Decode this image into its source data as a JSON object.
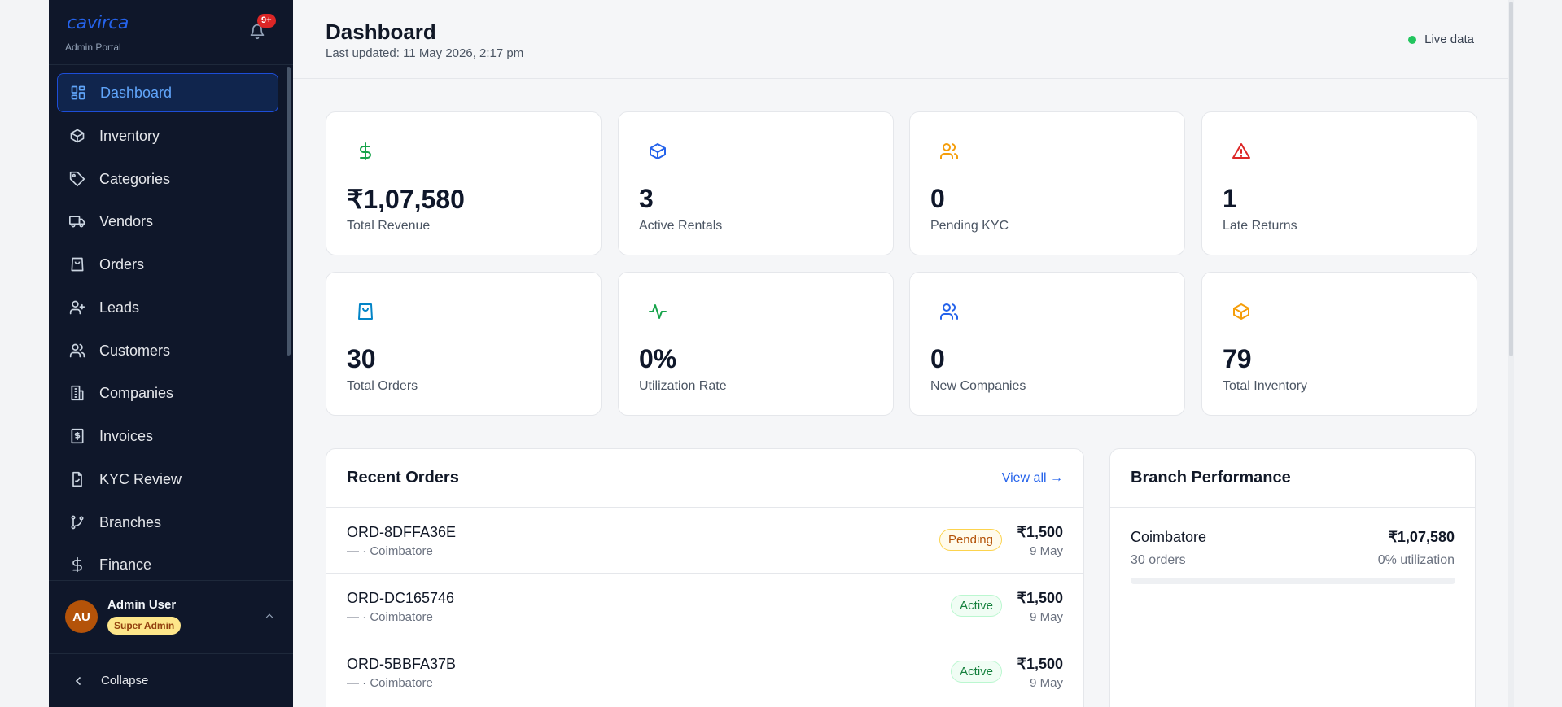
{
  "sidebar": {
    "logo": "cavirca",
    "subtitle": "Admin Portal",
    "notification_count": "9+",
    "items": [
      {
        "label": "Dashboard",
        "icon": "grid-icon"
      },
      {
        "label": "Inventory",
        "icon": "package-icon"
      },
      {
        "label": "Categories",
        "icon": "tag-icon"
      },
      {
        "label": "Vendors",
        "icon": "truck-icon"
      },
      {
        "label": "Orders",
        "icon": "shopping-bag-icon"
      },
      {
        "label": "Leads",
        "icon": "user-plus-icon"
      },
      {
        "label": "Customers",
        "icon": "users-icon"
      },
      {
        "label": "Companies",
        "icon": "building-icon"
      },
      {
        "label": "Invoices",
        "icon": "receipt-icon"
      },
      {
        "label": "KYC Review",
        "icon": "file-check-icon"
      },
      {
        "label": "Branches",
        "icon": "git-branch-icon"
      },
      {
        "label": "Finance",
        "icon": "dollar-icon"
      }
    ],
    "active_item": "Dashboard",
    "user": {
      "initials": "AU",
      "name": "Admin User",
      "role": "Super Admin"
    },
    "collapse_label": "Collapse"
  },
  "header": {
    "title": "Dashboard",
    "last_updated": "Last updated: 11 May 2026, 2:17 pm",
    "live_label": "Live data"
  },
  "stats": [
    {
      "value": "₹1,07,580",
      "label": "Total Revenue",
      "icon": "dollar-icon",
      "color": "#16a34a"
    },
    {
      "value": "3",
      "label": "Active Rentals",
      "icon": "package-icon",
      "color": "#2563eb"
    },
    {
      "value": "0",
      "label": "Pending KYC",
      "icon": "users-icon",
      "color": "#f59e0b"
    },
    {
      "value": "1",
      "label": "Late Returns",
      "icon": "alert-triangle-icon",
      "color": "#dc2626"
    },
    {
      "value": "30",
      "label": "Total Orders",
      "icon": "shopping-bag-icon",
      "color": "#0284c7"
    },
    {
      "value": "0%",
      "label": "Utilization Rate",
      "icon": "activity-icon",
      "color": "#16a34a"
    },
    {
      "value": "0",
      "label": "New Companies",
      "icon": "users-icon",
      "color": "#2563eb"
    },
    {
      "value": "79",
      "label": "Total Inventory",
      "icon": "package-icon",
      "color": "#f59e0b"
    }
  ],
  "recent_orders": {
    "title": "Recent Orders",
    "view_all": "View all →",
    "orders": [
      {
        "id": "ORD-8DFFA36E",
        "sub": "— · Coimbatore",
        "status": "Pending",
        "amount": "₹1,500",
        "date": "9 May"
      },
      {
        "id": "ORD-DC165746",
        "sub": "— · Coimbatore",
        "status": "Active",
        "amount": "₹1,500",
        "date": "9 May"
      },
      {
        "id": "ORD-5BBFA37B",
        "sub": "— · Coimbatore",
        "status": "Active",
        "amount": "₹1,500",
        "date": "9 May"
      }
    ]
  },
  "branch_performance": {
    "title": "Branch Performance",
    "branches": [
      {
        "name": "Coimbatore",
        "amount": "₹1,07,580",
        "orders": "30 orders",
        "utilization": "0% utilization",
        "utilization_value": 0
      }
    ]
  }
}
